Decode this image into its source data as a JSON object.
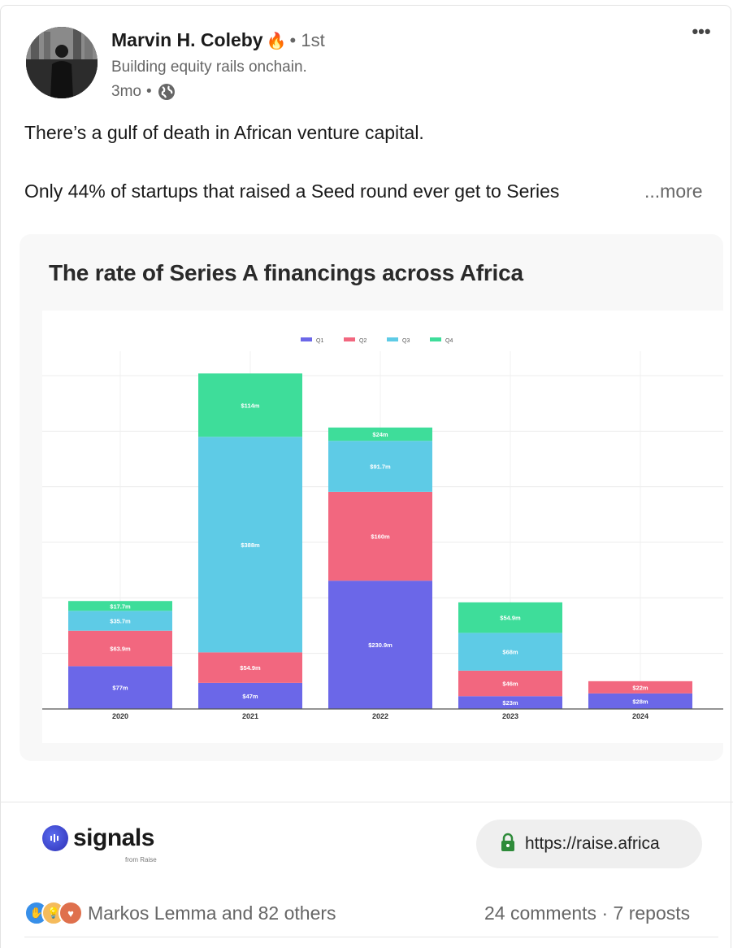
{
  "post": {
    "author_name": "Marvin H. Coleby",
    "author_emoji_icon": "fire-icon",
    "degree": "1st",
    "headline": "Building equity rails onchain.",
    "age": "3mo",
    "visibility_icon": "globe-icon",
    "text_line1": "There’s a gulf of death in African venture capital.",
    "text_line2": "Only 44% of startups that raised a Seed round ever get to Series",
    "see_more": "...more"
  },
  "chart_heading": "The rate of Series A financings across Africa",
  "chart_data": {
    "type": "bar",
    "stacked": true,
    "categories": [
      "2020",
      "2021",
      "2022",
      "2023",
      "2024"
    ],
    "series": [
      {
        "name": "Q1",
        "color": "#6b67e8",
        "values": [
          77,
          47,
          230.9,
          23,
          28
        ],
        "labels": [
          "$77m",
          "$47m",
          "$230.9m",
          "$23m",
          "$28m"
        ]
      },
      {
        "name": "Q2",
        "color": "#f2677f",
        "values": [
          63.9,
          54.9,
          160,
          46,
          22
        ],
        "labels": [
          "$63.9m",
          "$54.9m",
          "$160m",
          "$46m",
          "$22m"
        ]
      },
      {
        "name": "Q3",
        "color": "#5ecbe6",
        "values": [
          35.7,
          388,
          91.7,
          68,
          0
        ],
        "labels": [
          "$35.7m",
          "$388m",
          "$91.7m",
          "$68m",
          ""
        ]
      },
      {
        "name": "Q4",
        "color": "#3edd9a",
        "values": [
          17.7,
          114,
          24,
          54.9,
          0
        ],
        "labels": [
          "$17.7m",
          "$114m",
          "$24m",
          "$54.9m",
          ""
        ]
      }
    ],
    "ylim": [
      0,
      600
    ],
    "grid": true,
    "legend_position": "top-center"
  },
  "link_card": {
    "brand": "signals",
    "brand_sub": "from Raise",
    "url": "https://raise.africa"
  },
  "social": {
    "reactions": "Markos Lemma and 82 others",
    "comments": "24 comments",
    "separator": "·",
    "reposts": "7 reposts"
  }
}
